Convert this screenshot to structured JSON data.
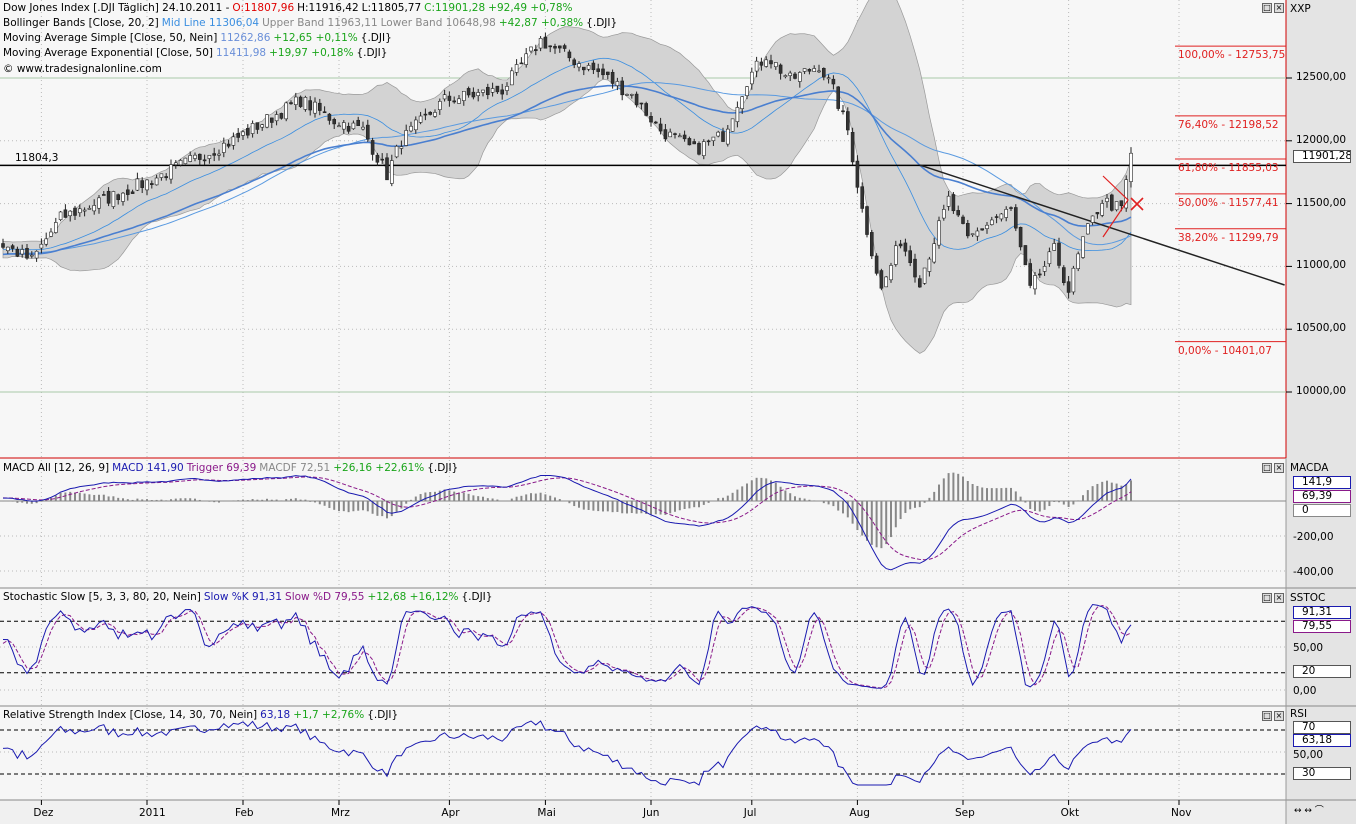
{
  "header": {
    "main": {
      "title": "Dow Jones Index [.DJI  Täglich] 24.10.2011 -",
      "open": "O:11807,96",
      "high": "H:11916,42",
      "low": "L:11805,77",
      "close": "C:11901,28",
      "change": "+92,49 +0,78%"
    },
    "bollinger": {
      "name": "Bollinger Bands [Close, 20, 2]",
      "mid": "Mid Line 11306,04",
      "upper": "Upper Band 11963,11",
      "lower": "Lower Band 10648,98",
      "change": "+42,87 +0,38%",
      "sym": "{.DJI}"
    },
    "sma": {
      "name": "Moving Average Simple [Close, 50, Nein]",
      "value": "11262,86",
      "change": "+12,65 +0,11%",
      "sym": "{.DJI}"
    },
    "ema": {
      "name": "Moving Average Exponential [Close, 50]",
      "value": "11411,98",
      "change": "+19,97 +0,18%",
      "sym": "{.DJI}"
    },
    "copyright": "© www.tradesignalonline.com"
  },
  "macd_legend": {
    "name": "MACD All [12, 26, 9]",
    "macd": "MACD 141,90",
    "trigger": "Trigger 69,39",
    "macdf": "MACDF 72,51",
    "change": "+26,16 +22,61%",
    "sym": "{.DJI}"
  },
  "stoch_legend": {
    "name": "Stochastic Slow [5, 3, 3, 80, 20, Nein]",
    "k": "Slow %K 91,31",
    "d": "Slow %D 79,55",
    "change": "+12,68 +16,12%",
    "sym": "{.DJI}"
  },
  "rsi_legend": {
    "name": "Relative Strength Index [Close, 14, 30, 70, Nein]",
    "value": "63,18",
    "change": "+1,7 +2,76%",
    "sym": "{.DJI}"
  },
  "axes": {
    "price_name": "XXP",
    "price_ticks": [
      {
        "v": 12500,
        "l": "12500,00"
      },
      {
        "v": 12000,
        "l": "12000,00"
      },
      {
        "v": 11500,
        "l": "11500,00"
      },
      {
        "v": 11000,
        "l": "11000,00"
      },
      {
        "v": 10500,
        "l": "10500,00"
      },
      {
        "v": 10000,
        "l": "10000,00"
      }
    ],
    "last_price": "11901,28",
    "macd_name": "MACDA",
    "macd_ticks": [
      {
        "v": -200,
        "l": "-200,00"
      },
      {
        "v": -400,
        "l": "-400,00"
      }
    ],
    "macd_tags": [
      "141,9",
      "69,39",
      "0"
    ],
    "stoch_name": "SSTOC",
    "stoch_ticks": [
      {
        "v": 50,
        "l": "50,00"
      },
      {
        "v": 0,
        "l": "0,00"
      }
    ],
    "stoch_tags": [
      "91,31",
      "79,55",
      "20"
    ],
    "rsi_name": "RSI",
    "rsi_ticks": [
      {
        "v": 50,
        "l": "50,00"
      }
    ],
    "rsi_tags": [
      "70",
      "63,18",
      "30"
    ]
  },
  "chart_data": {
    "type": "candlestick",
    "keypoints": [
      [
        0,
        11170
      ],
      [
        6,
        11050
      ],
      [
        12,
        11385
      ],
      [
        31,
        11690
      ],
      [
        48,
        12005
      ],
      [
        62,
        12325
      ],
      [
        69,
        12165
      ],
      [
        75,
        12085
      ],
      [
        80,
        11730
      ],
      [
        83,
        12005
      ],
      [
        92,
        12325
      ],
      [
        98,
        12365
      ],
      [
        104,
        12405
      ],
      [
        112,
        12800
      ],
      [
        119,
        12640
      ],
      [
        125,
        12525
      ],
      [
        131,
        12365
      ],
      [
        137,
        12085
      ],
      [
        144,
        11925
      ],
      [
        150,
        12045
      ],
      [
        155,
        12485
      ],
      [
        159,
        12685
      ],
      [
        164,
        12485
      ],
      [
        170,
        12605
      ],
      [
        173,
        12400
      ],
      [
        176,
        12085
      ],
      [
        179,
        11450
      ],
      [
        183,
        10810
      ],
      [
        187,
        11210
      ],
      [
        191,
        10890
      ],
      [
        197,
        11530
      ],
      [
        201,
        11210
      ],
      [
        206,
        11370
      ],
      [
        210,
        11450
      ],
      [
        214,
        10810
      ],
      [
        219,
        11130
      ],
      [
        222,
        10810
      ],
      [
        225,
        11210
      ],
      [
        229,
        11530
      ],
      [
        233,
        11450
      ],
      [
        235,
        11901
      ]
    ],
    "months": [
      {
        "label": "Dez",
        "day": 8
      },
      {
        "label": "2011",
        "day": 30
      },
      {
        "label": "Feb",
        "day": 50
      },
      {
        "label": "Mrz",
        "day": 70
      },
      {
        "label": "Apr",
        "day": 93
      },
      {
        "label": "Mai",
        "day": 113
      },
      {
        "label": "Jun",
        "day": 135
      },
      {
        "label": "Jul",
        "day": 156
      },
      {
        "label": "Aug",
        "day": 178
      },
      {
        "label": "Sep",
        "day": 200
      },
      {
        "label": "Okt",
        "day": 222
      },
      {
        "label": "Nov",
        "day": 245
      }
    ],
    "horizontal_line": {
      "value": 11804.3,
      "label": "11804,3"
    },
    "trendline": [
      [
        191,
        11807
      ],
      [
        267,
        10852
      ]
    ],
    "fibonacci": [
      {
        "label": "100,00% - 12753,75",
        "value": 12753.75
      },
      {
        "label": "76,40% - 12198,52",
        "value": 12198.52
      },
      {
        "label": "61,80% - 11855,03",
        "value": 11855.03
      },
      {
        "label": "50,00% - 11577,41",
        "value": 11577.41
      },
      {
        "label": "38,20% - 11299,79",
        "value": 11299.79
      },
      {
        "label": "0,00% - 10401,07",
        "value": 10401.07
      }
    ],
    "stoch_levels": [
      80,
      20
    ],
    "rsi_levels": [
      70,
      30
    ],
    "colors": {
      "up": "#ffffff",
      "down": "#333333",
      "band": "#d3d3d3",
      "ma": "#3a8ee0",
      "fib": "#e02020",
      "macd": "#1a1ab0",
      "trigger": "#8a1a8a"
    }
  }
}
